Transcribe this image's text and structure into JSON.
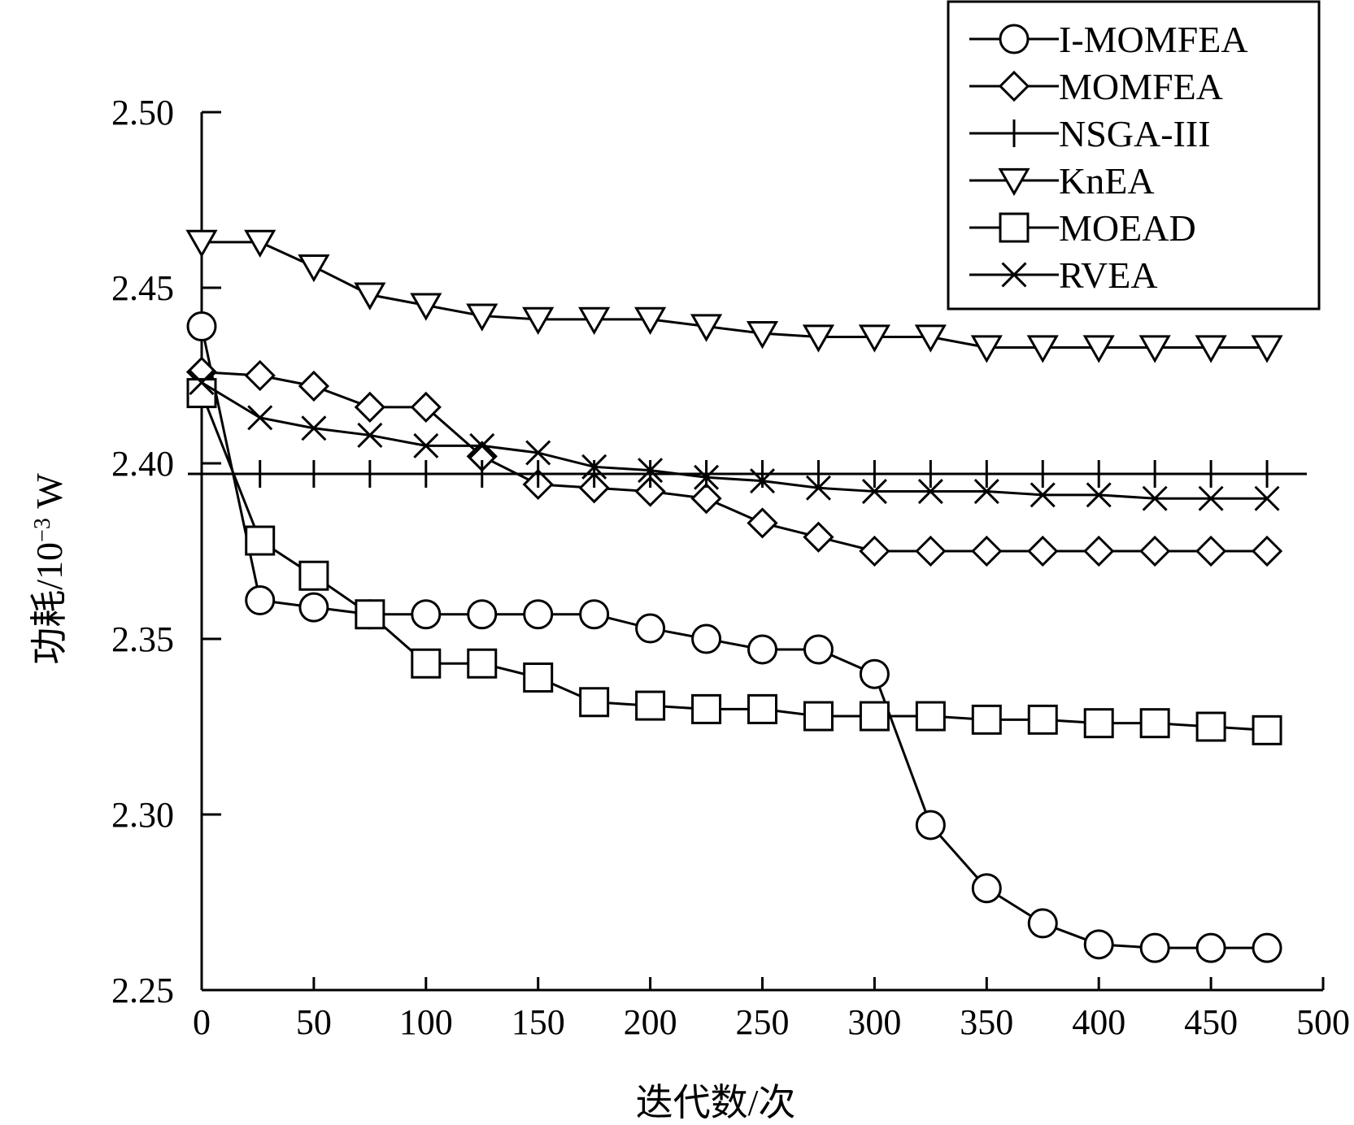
{
  "chart_data": {
    "type": "line",
    "title": "",
    "xlabel": "迭代数/次",
    "ylabel": {
      "prefix": "功耗/10",
      "sup": "−3",
      "suffix": " W"
    },
    "xlim": [
      0,
      500
    ],
    "ylim": [
      2.25,
      2.5
    ],
    "xticks": [
      "0",
      "50",
      "100",
      "150",
      "200",
      "250",
      "300",
      "350",
      "400",
      "450",
      "500"
    ],
    "yticks": [
      "2.25",
      "2.30",
      "2.35",
      "2.40",
      "2.45",
      "2.50"
    ],
    "grid": false,
    "legend_position": "top-right",
    "x": [
      0,
      26,
      50,
      75,
      100,
      125,
      150,
      175,
      200,
      225,
      250,
      275,
      300,
      325,
      350,
      375,
      400,
      425,
      450,
      475
    ],
    "series": [
      {
        "name": "I-MOMFEA",
        "marker": "circle",
        "values": [
          2.439,
          2.361,
          2.359,
          2.357,
          2.357,
          2.357,
          2.357,
          2.357,
          2.353,
          2.35,
          2.347,
          2.347,
          2.34,
          2.297,
          2.279,
          2.269,
          2.263,
          2.262,
          2.262,
          2.262
        ]
      },
      {
        "name": "MOMFEA",
        "marker": "diamond",
        "values": [
          2.426,
          2.425,
          2.422,
          2.416,
          2.416,
          2.402,
          2.394,
          2.393,
          2.392,
          2.39,
          2.383,
          2.379,
          2.375,
          2.375,
          2.375,
          2.375,
          2.375,
          2.375,
          2.375,
          2.375
        ]
      },
      {
        "name": "NSGA-III",
        "marker": "plus",
        "values": [
          2.397,
          2.397,
          2.397,
          2.397,
          2.397,
          2.397,
          2.397,
          2.397,
          2.397,
          2.397,
          2.397,
          2.397,
          2.397,
          2.397,
          2.397,
          2.397,
          2.397,
          2.397,
          2.397,
          2.397
        ]
      },
      {
        "name": "KnEA",
        "marker": "triangle-down",
        "values": [
          2.463,
          2.463,
          2.456,
          2.448,
          2.445,
          2.442,
          2.441,
          2.441,
          2.441,
          2.439,
          2.437,
          2.436,
          2.436,
          2.436,
          2.433,
          2.433,
          2.433,
          2.433,
          2.433,
          2.433
        ]
      },
      {
        "name": "MOEAD",
        "marker": "square",
        "values": [
          2.42,
          2.378,
          2.368,
          2.357,
          2.343,
          2.343,
          2.339,
          2.332,
          2.331,
          2.33,
          2.33,
          2.328,
          2.328,
          2.328,
          2.327,
          2.327,
          2.326,
          2.326,
          2.325,
          2.324
        ]
      },
      {
        "name": "RVEA",
        "marker": "x",
        "values": [
          2.423,
          2.413,
          2.41,
          2.408,
          2.405,
          2.405,
          2.403,
          2.399,
          2.398,
          2.396,
          2.395,
          2.393,
          2.392,
          2.392,
          2.392,
          2.391,
          2.391,
          2.39,
          2.39,
          2.39
        ]
      }
    ]
  }
}
